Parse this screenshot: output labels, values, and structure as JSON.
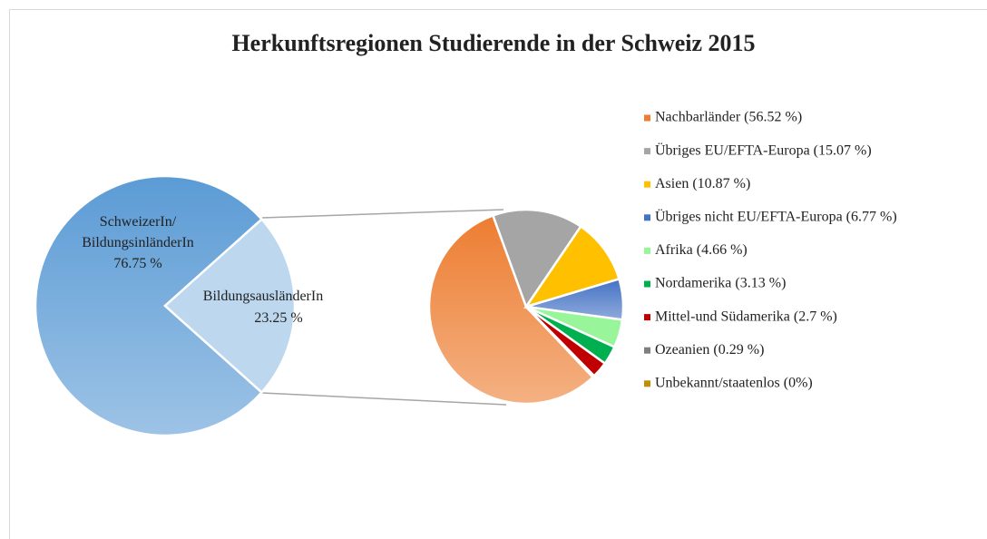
{
  "chart_data": [
    {
      "type": "pie",
      "title": "Herkunftsregionen Studierende in der Schweiz 2015",
      "categories": [
        "SchweizerIn/\nBildungsinländerIn",
        "BildungsausländerIn"
      ],
      "values": [
        76.75,
        23.25
      ],
      "value_labels": [
        "76.75 %",
        "23.25 %"
      ],
      "colors": [
        "#5b9bd5",
        "#bdd7ee"
      ]
    },
    {
      "type": "pie",
      "categories": [
        "Nachbarländer (56.52 %)",
        "Übriges EU/EFTA-Europa (15.07 %)",
        "Asien (10.87 %)",
        "Übriges nicht EU/EFTA-Europa (6.77 %)",
        "Afrika (4.66 %)",
        "Nordamerika (3.13 %)",
        "Mittel-und Südamerika (2.7 %)",
        "Ozeanien (0.29 %)",
        "Unbekannt/staatenlos (0%)"
      ],
      "values": [
        56.52,
        15.07,
        10.87,
        6.77,
        4.66,
        3.13,
        2.7,
        0.29,
        0
      ],
      "colors": [
        "#ed7d31",
        "#a5a5a5",
        "#ffc000",
        "#4472c4",
        "#99f599",
        "#00b050",
        "#c00000",
        "#7f7f7f",
        "#bf9000"
      ],
      "legend": "right"
    }
  ]
}
